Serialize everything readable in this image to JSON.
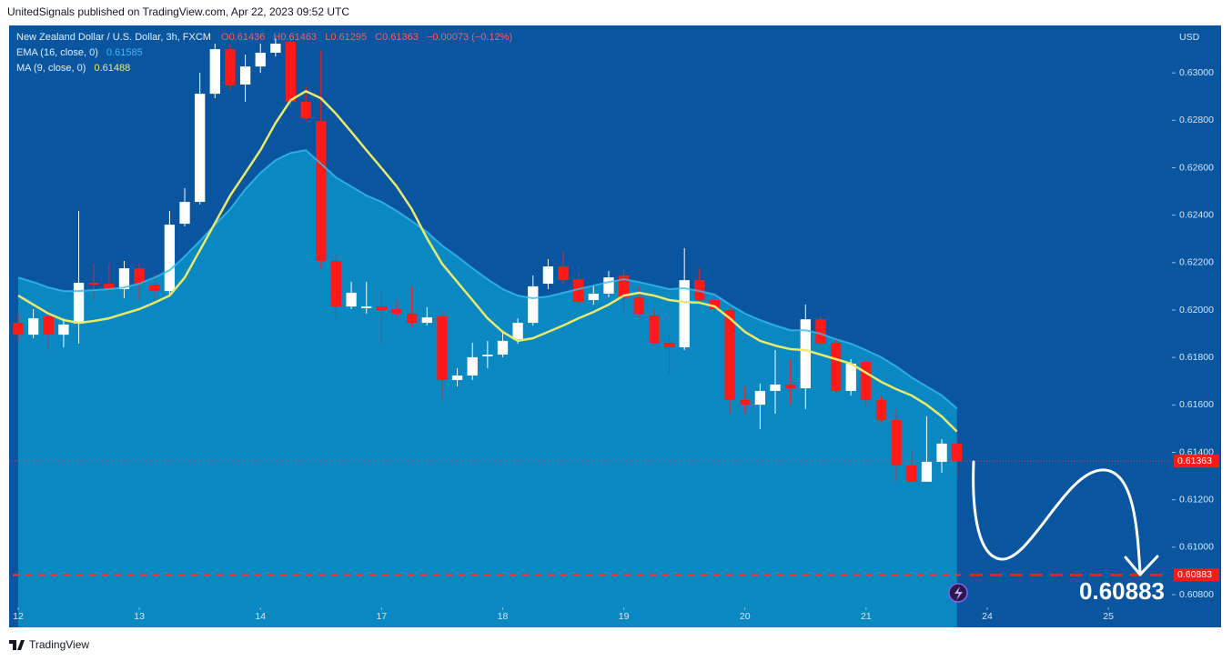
{
  "header": {
    "published": "UnitedSignals published on TradingView.com, Apr 22, 2023 09:52 UTC",
    "footer_logo": "TradingView"
  },
  "chart_data": {
    "type": "candlestick",
    "title": "New Zealand Dollar / U.S. Dollar, 3h, FXCM",
    "ohlc_prefixes": [
      "O",
      "H",
      "L",
      "C"
    ],
    "change": "−0.00073 (−0.12%)",
    "currency": "USD",
    "up_color": "#ffffff",
    "down_color": "#ff1a1a",
    "open": [
      0.61946,
      0.61896,
      0.61973,
      0.61896,
      0.61943,
      0.62115,
      0.62111,
      0.62088,
      0.62176,
      0.62107,
      0.6208,
      0.62364,
      0.62456,
      0.62912,
      0.631,
      0.62951,
      0.63027,
      0.63085,
      0.63131,
      0.62878,
      0.62797,
      0.62207,
      0.62015,
      0.62008,
      0.62015,
      0.62004,
      0.61985,
      0.61946,
      0.61973,
      0.61705,
      0.61724,
      0.61805,
      0.61812,
      0.61877,
      0.61946,
      0.62111,
      0.62184,
      0.6213,
      0.62042,
      0.62069,
      0.62146,
      0.62054,
      0.61977,
      0.61862,
      0.61843,
      0.62126,
      0.62042,
      0.62,
      0.61621,
      0.61601,
      0.61659,
      0.61686,
      0.6167,
      0.61961,
      0.61862,
      0.61659,
      0.61781,
      0.61621,
      0.61536,
      0.61345,
      0.61276,
      0.6136,
      0.61436
    ],
    "high": [
      0.61985,
      0.62004,
      0.62004,
      0.61965,
      0.62418,
      0.62195,
      0.62195,
      0.62207,
      0.62195,
      0.62157,
      0.62418,
      0.62514,
      0.63,
      0.63123,
      0.63123,
      0.63077,
      0.63123,
      0.63146,
      0.63154,
      0.62943,
      0.63096,
      0.62234,
      0.62119,
      0.62119,
      0.6208,
      0.62042,
      0.621,
      0.62012,
      0.61996,
      0.61755,
      0.61862,
      0.6187,
      0.61904,
      0.61965,
      0.62146,
      0.62215,
      0.62245,
      0.62157,
      0.621,
      0.62165,
      0.62176,
      0.621,
      0.62004,
      0.61889,
      0.62261,
      0.62176,
      0.62073,
      0.62012,
      0.61678,
      0.6169,
      0.61831,
      0.61793,
      0.62023,
      0.61973,
      0.61877,
      0.61793,
      0.61789,
      0.61636,
      0.61582,
      0.6141,
      0.61552,
      0.61456,
      0.61463
    ],
    "low": [
      0.6187,
      0.61881,
      0.61831,
      0.61843,
      0.61858,
      0.62042,
      0.62073,
      0.6205,
      0.62042,
      0.62042,
      0.62061,
      0.62353,
      0.62445,
      0.62893,
      0.62931,
      0.62878,
      0.63,
      0.63069,
      0.62855,
      0.62797,
      0.62176,
      0.61958,
      0.62004,
      0.61985,
      0.61858,
      0.61965,
      0.61927,
      0.61935,
      0.61621,
      0.61678,
      0.61705,
      0.61755,
      0.61801,
      0.61858,
      0.61935,
      0.62088,
      0.62111,
      0.62023,
      0.62023,
      0.62054,
      0.61985,
      0.61965,
      0.6185,
      0.61728,
      0.61831,
      0.62031,
      0.61985,
      0.61563,
      0.61563,
      0.61498,
      0.61563,
      0.61601,
      0.61582,
      0.6185,
      0.61651,
      0.6164,
      0.61598,
      0.61525,
      0.61276,
      0.61276,
      0.61276,
      0.61314,
      0.61295
    ],
    "close": [
      0.61896,
      0.61965,
      0.61896,
      0.61939,
      0.62115,
      0.62107,
      0.62088,
      0.62176,
      0.62111,
      0.6208,
      0.6236,
      0.62456,
      0.62912,
      0.631,
      0.62947,
      0.63027,
      0.63085,
      0.63123,
      0.62878,
      0.62809,
      0.62207,
      0.62015,
      0.62073,
      0.62015,
      0.62,
      0.61985,
      0.61946,
      0.61969,
      0.61705,
      0.61724,
      0.61801,
      0.61812,
      0.6187,
      0.61946,
      0.621,
      0.62184,
      0.62126,
      0.62034,
      0.62069,
      0.62138,
      0.62054,
      0.61985,
      0.61862,
      0.61843,
      0.62126,
      0.62042,
      0.62004,
      0.61621,
      0.61601,
      0.61659,
      0.61686,
      0.6167,
      0.61961,
      0.61858,
      0.61659,
      0.61774,
      0.61621,
      0.61536,
      0.61345,
      0.61276,
      0.6136,
      0.61437,
      0.61363
    ],
    "series": [
      {
        "name": "EMA (16, close, 0)",
        "color": "#36bdf0",
        "fill": "#0a88c2",
        "values": [
          0.62137,
          0.62118,
          0.62095,
          0.6208,
          0.6208,
          0.62084,
          0.62088,
          0.62095,
          0.62111,
          0.62137,
          0.62168,
          0.62226,
          0.62291,
          0.6236,
          0.62425,
          0.62509,
          0.62578,
          0.62632,
          0.62663,
          0.62674,
          0.62617,
          0.62559,
          0.62521,
          0.62483,
          0.62456,
          0.62418,
          0.62375,
          0.62329,
          0.62272,
          0.62226,
          0.62176,
          0.6213,
          0.62088,
          0.62061,
          0.6205,
          0.62057,
          0.62073,
          0.62088,
          0.62103,
          0.62118,
          0.6213,
          0.62118,
          0.62103,
          0.62088,
          0.62092,
          0.6208,
          0.62065,
          0.62023,
          0.61985,
          0.61958,
          0.61935,
          0.61915,
          0.61915,
          0.619,
          0.61877,
          0.61858,
          0.61831,
          0.61801,
          0.61762,
          0.61716,
          0.61678,
          0.6164,
          0.61585
        ]
      },
      {
        "name": "MA (9, close, 0)",
        "color": "#e9ea6a",
        "values": [
          0.62061,
          0.62023,
          0.61985,
          0.61958,
          0.61946,
          0.61954,
          0.61965,
          0.61985,
          0.62004,
          0.62031,
          0.62061,
          0.62137,
          0.62252,
          0.62367,
          0.62483,
          0.62578,
          0.62674,
          0.62789,
          0.62885,
          0.62923,
          0.62893,
          0.62827,
          0.62751,
          0.62674,
          0.62598,
          0.62521,
          0.62425,
          0.62302,
          0.62195,
          0.62118,
          0.62042,
          0.61965,
          0.61908,
          0.6187,
          0.61881,
          0.61908,
          0.61935,
          0.61965,
          0.61992,
          0.62023,
          0.62061,
          0.62073,
          0.62061,
          0.62042,
          0.62034,
          0.62031,
          0.62015,
          0.61965,
          0.61908,
          0.6187,
          0.6185,
          0.61835,
          0.61831,
          0.61812,
          0.61793,
          0.61774,
          0.61735,
          0.61697,
          0.61666,
          0.6164,
          0.61601,
          0.61551,
          0.61488
        ]
      }
    ],
    "target": 0.60883,
    "ylim": [
      0.60662,
      0.632
    ],
    "yticks": [
      {
        "value": 0.608,
        "label": "0.60800"
      },
      {
        "value": 0.61,
        "label": "0.61000"
      },
      {
        "value": 0.612,
        "label": "0.61200"
      },
      {
        "value": 0.614,
        "label": "0.61400"
      },
      {
        "value": 0.616,
        "label": "0.61600"
      },
      {
        "value": 0.618,
        "label": "0.61800"
      },
      {
        "value": 0.62,
        "label": "0.62000"
      },
      {
        "value": 0.622,
        "label": "0.62200"
      },
      {
        "value": 0.624,
        "label": "0.62400"
      },
      {
        "value": 0.626,
        "label": "0.62600"
      },
      {
        "value": 0.628,
        "label": "0.62800"
      },
      {
        "value": 0.63,
        "label": "0.63000"
      }
    ],
    "xlim": [
      -0.6,
      76.2
    ],
    "xticks": [
      {
        "value": 0,
        "label": "12"
      },
      {
        "value": 8,
        "label": "13"
      },
      {
        "value": 16,
        "label": "14"
      },
      {
        "value": 24,
        "label": "17"
      },
      {
        "value": 32,
        "label": "18"
      },
      {
        "value": 40,
        "label": "19"
      },
      {
        "value": 48,
        "label": "20"
      },
      {
        "value": 56,
        "label": "21"
      },
      {
        "value": 64,
        "label": "24"
      },
      {
        "value": 72,
        "label": "25"
      }
    ]
  }
}
